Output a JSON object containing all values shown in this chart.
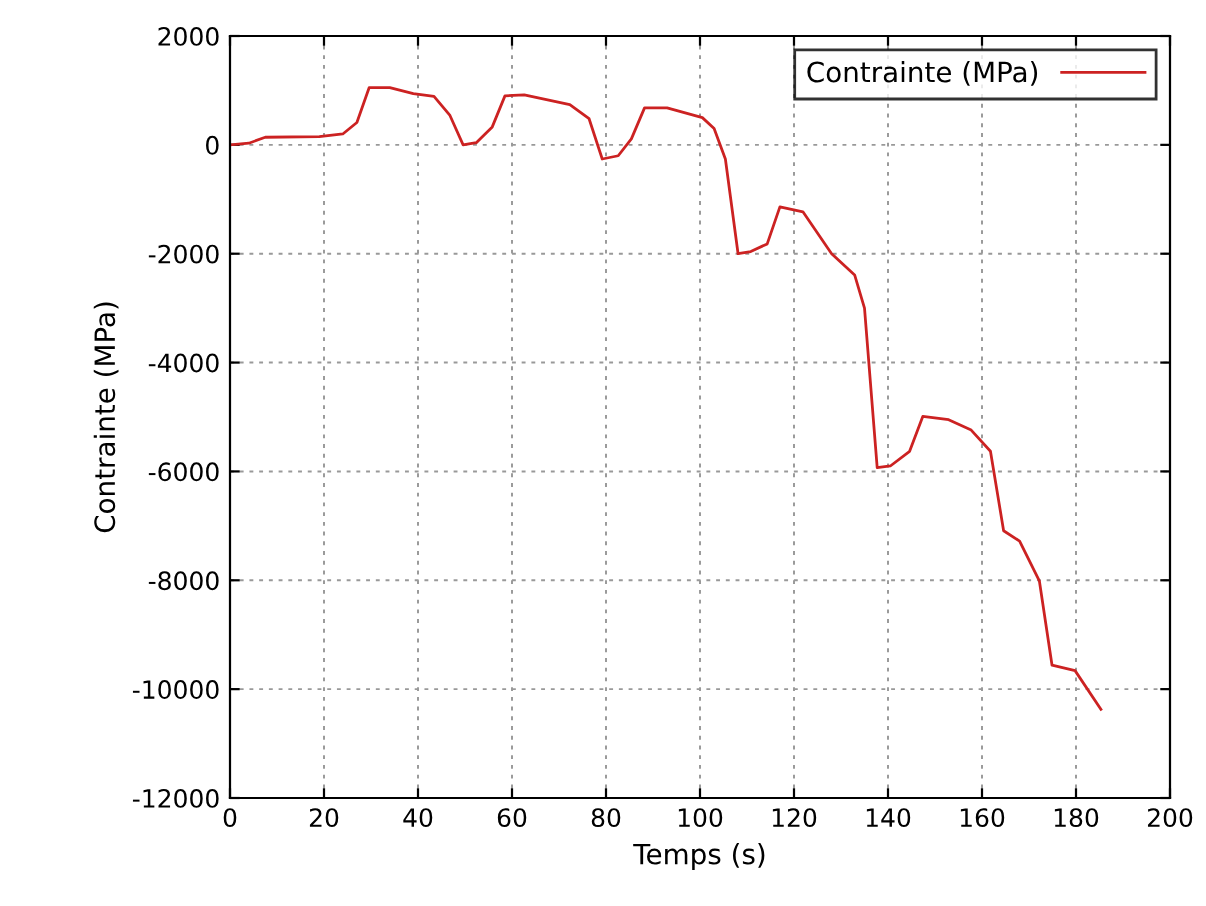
{
  "chart_data": {
    "type": "line",
    "xlabel": "Temps (s)",
    "ylabel": "Contrainte (MPa)",
    "xlim": [
      0,
      200
    ],
    "ylim": [
      -12000,
      2000
    ],
    "xticks": [
      0,
      20,
      40,
      60,
      80,
      100,
      120,
      140,
      160,
      180,
      200
    ],
    "yticks": [
      -12000,
      -10000,
      -8000,
      -6000,
      -4000,
      -2000,
      0,
      2000
    ],
    "grid": true,
    "legend": "top right",
    "marker": "none",
    "line_style": "solid",
    "series": [
      {
        "name": "Contrainte (MPa)",
        "color": "#cc2222",
        "x": [
          0,
          4,
          7.5,
          19,
          24,
          27,
          29.6,
          34,
          39,
          43.4,
          46.8,
          49.6,
          52.4,
          55.8,
          58.5,
          62.6,
          72.3,
          76.4,
          79.2,
          82.6,
          85.4,
          88.2,
          93,
          100.5,
          103,
          105.4,
          108.1,
          110.8,
          114.3,
          117,
          121.9,
          128,
          132.9,
          135,
          137.7,
          140.5,
          144.6,
          147.4,
          152.9,
          157.7,
          161.8,
          164.6,
          168,
          172.2,
          174.9,
          179.8,
          185.3
        ],
        "values": [
          0,
          30,
          140,
          150,
          200,
          410,
          1050,
          1050,
          940,
          890,
          540,
          0,
          40,
          330,
          900,
          920,
          740,
          480,
          -260,
          -200,
          110,
          680,
          680,
          500,
          300,
          -260,
          -2000,
          -1960,
          -1820,
          -1140,
          -1230,
          -2000,
          -2390,
          -3000,
          -5930,
          -5900,
          -5630,
          -4990,
          -5050,
          -5240,
          -5630,
          -7090,
          -7280,
          -8010,
          -9560,
          -9660,
          -10370
        ]
      }
    ]
  }
}
